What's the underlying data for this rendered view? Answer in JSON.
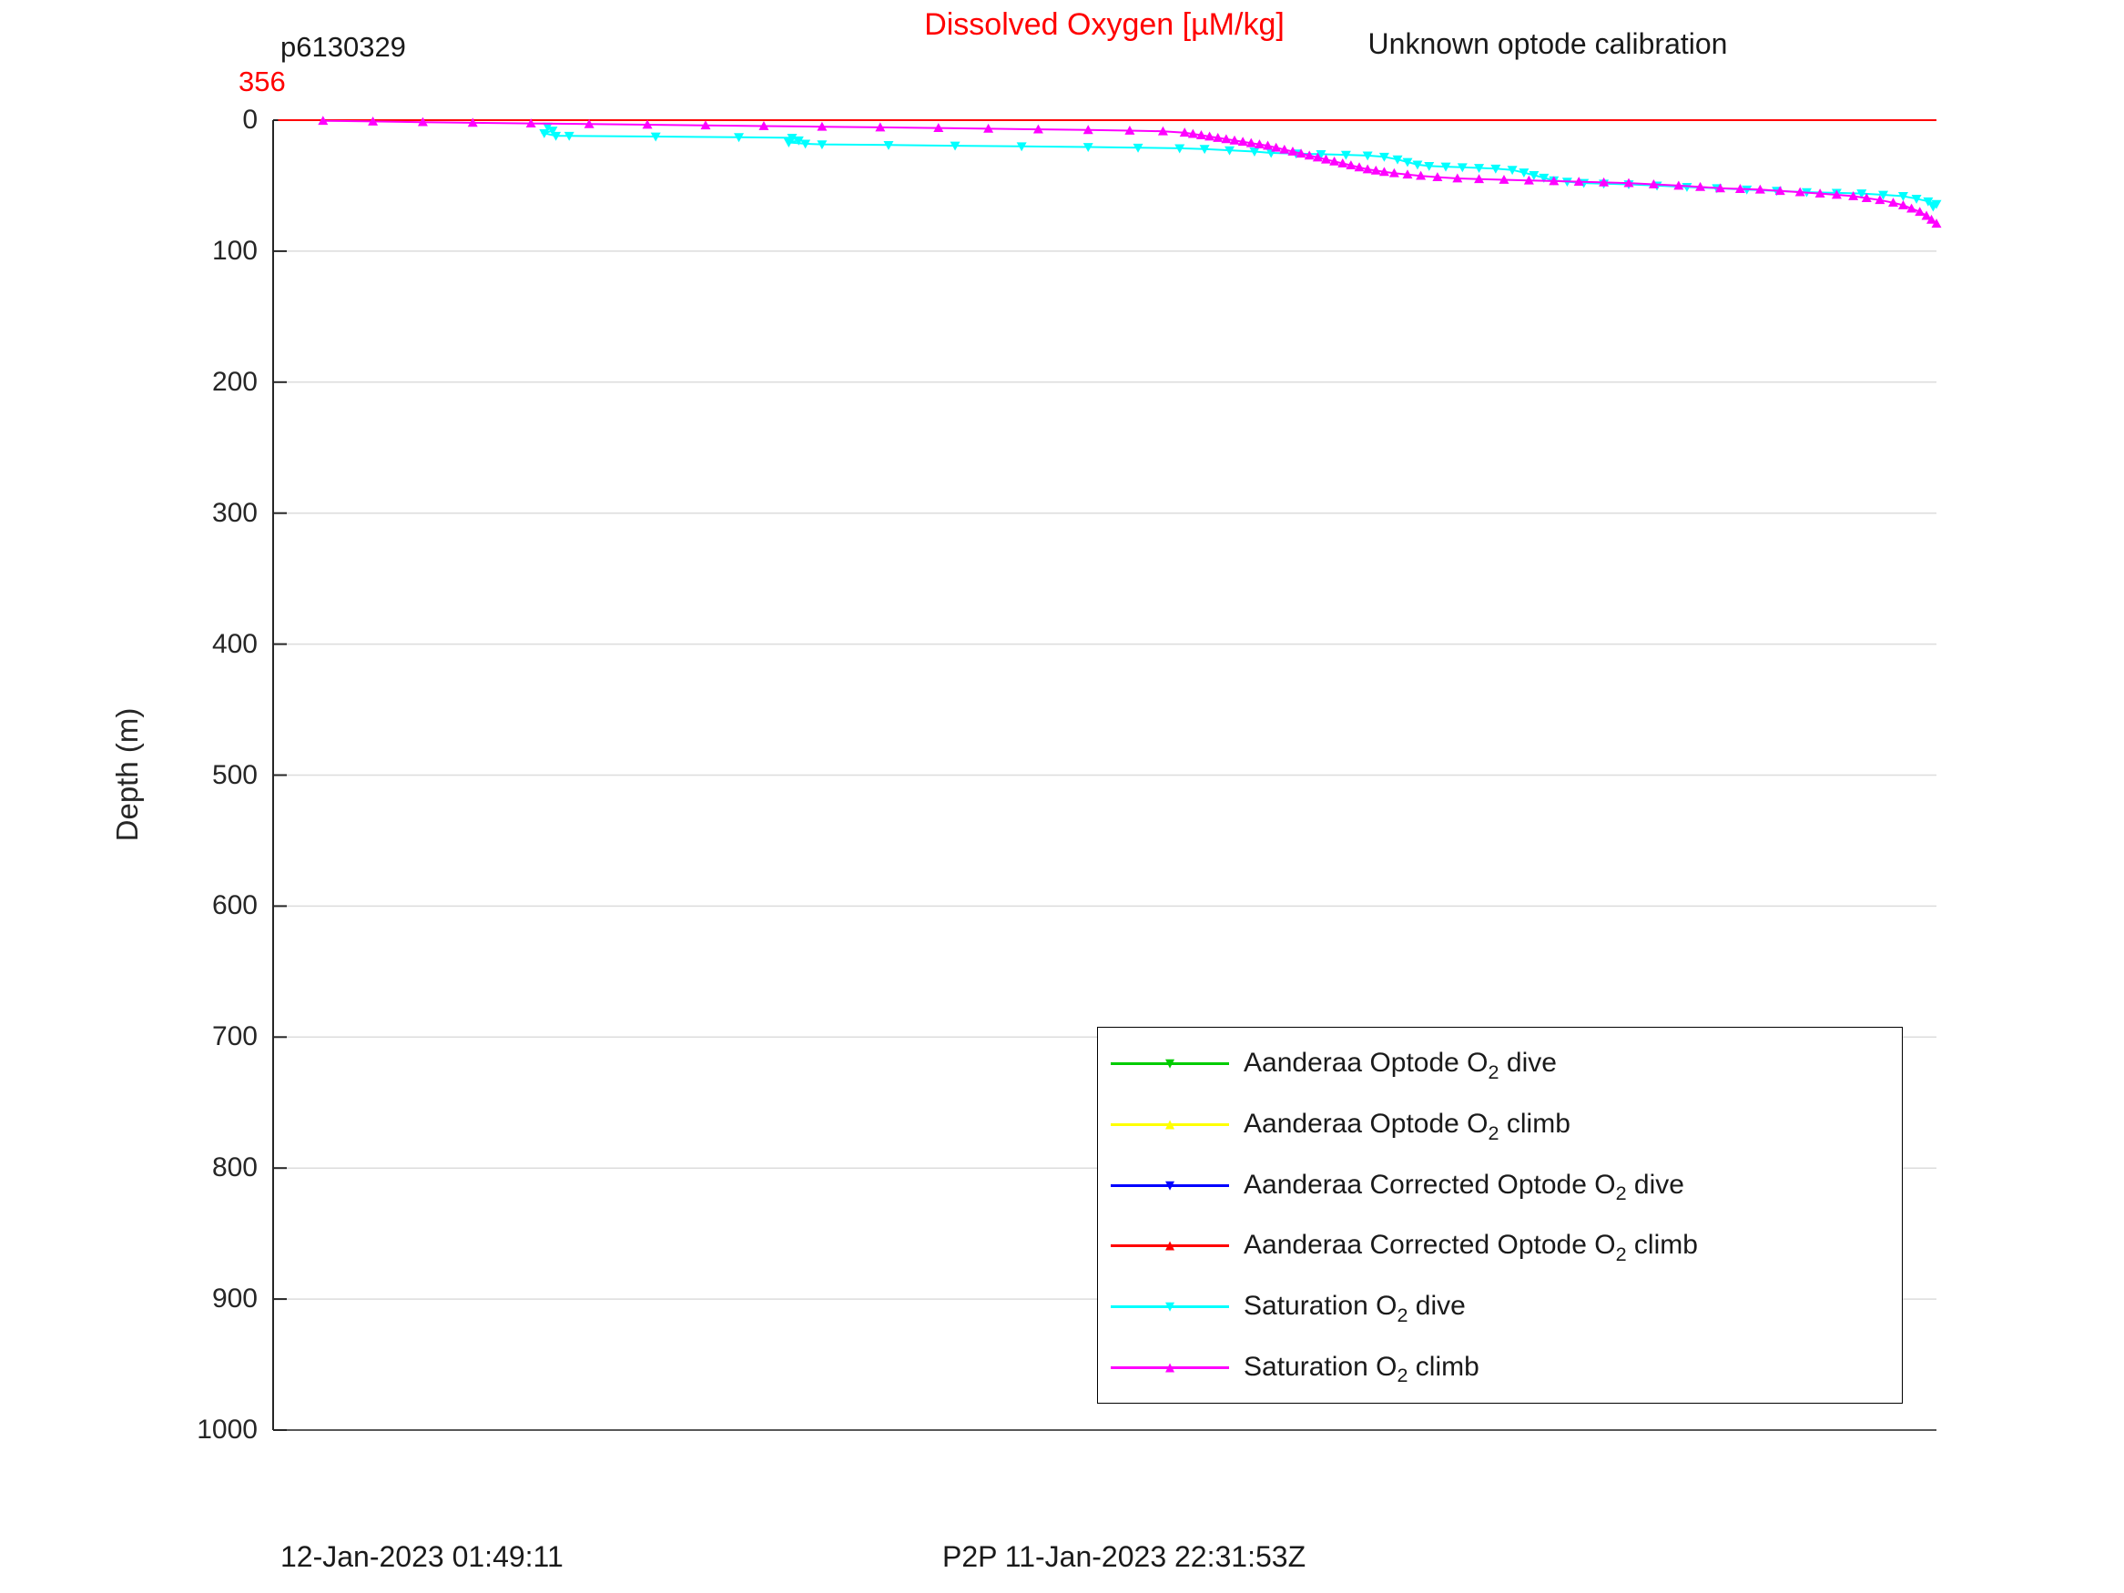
{
  "header": {
    "mission_id": "p6130329",
    "calibration_note": "Unknown optode calibration"
  },
  "footer": {
    "timestamp_left": "12-Jan-2023 01:49:11",
    "timestamp_right": "P2P 11-Jan-2023 22:31:53Z"
  },
  "legend": {
    "items": [
      {
        "pre": "Aanderaa Optode O",
        "sub": "2",
        "post": " dive"
      },
      {
        "pre": "Aanderaa Optode O",
        "sub": "2",
        "post": " climb"
      },
      {
        "pre": "Aanderaa Corrected Optode O",
        "sub": "2",
        "post": " dive"
      },
      {
        "pre": "Aanderaa Corrected Optode O",
        "sub": "2",
        "post": " climb"
      },
      {
        "pre": "Saturation O",
        "sub": "2",
        "post": " dive"
      },
      {
        "pre": "Saturation O",
        "sub": "2",
        "post": " climb"
      }
    ]
  },
  "chart_data": {
    "type": "line",
    "title": "Dissolved Oxygen [µM/kg]",
    "xlabel": "",
    "ylabel": "Depth (m)",
    "ylim": [
      0,
      1000
    ],
    "y_inverted": true,
    "yticks": [
      0,
      100,
      200,
      300,
      400,
      500,
      600,
      700,
      800,
      900,
      1000
    ],
    "grid": "horizontal",
    "legend_position": "lower-right",
    "x_left_annotation": "356",
    "x_axis_note": "x tick labels not visible in figure; series x values given as fraction of plot width (0 = left edge, 1 = right edge)",
    "series": [
      {
        "name": "Aanderaa Optode O2 dive",
        "color": "#00cc00",
        "marker": "down",
        "show_markers": false,
        "points": [
          [
            0.003,
            0
          ],
          [
            1,
            0
          ]
        ]
      },
      {
        "name": "Aanderaa Optode O2 climb",
        "color": "#ffff00",
        "marker": "up",
        "show_markers": false,
        "points": [
          [
            0.003,
            0
          ],
          [
            1,
            0
          ]
        ]
      },
      {
        "name": "Aanderaa Corrected Optode O2 dive",
        "color": "#0000ff",
        "marker": "down",
        "show_markers": false,
        "points": [
          [
            0.003,
            0
          ],
          [
            1,
            0
          ]
        ]
      },
      {
        "name": "Aanderaa Corrected Optode O2 climb",
        "color": "#ff0000",
        "marker": "up",
        "show_markers": false,
        "points": [
          [
            0.003,
            0
          ],
          [
            1,
            0
          ]
        ]
      },
      {
        "name": "Saturation O2 dive",
        "color": "#00ffff",
        "marker": "down",
        "show_markers": true,
        "points": [
          [
            0.165,
            5
          ],
          [
            0.168,
            8
          ],
          [
            0.163,
            10
          ],
          [
            0.17,
            12
          ],
          [
            0.178,
            12
          ],
          [
            0.23,
            12.5
          ],
          [
            0.28,
            13
          ],
          [
            0.312,
            13.5
          ],
          [
            0.316,
            15.5
          ],
          [
            0.31,
            17
          ],
          [
            0.32,
            18
          ],
          [
            0.33,
            18.5
          ],
          [
            0.37,
            19
          ],
          [
            0.41,
            19.5
          ],
          [
            0.45,
            20
          ],
          [
            0.49,
            20.5
          ],
          [
            0.52,
            21
          ],
          [
            0.545,
            21.5
          ],
          [
            0.56,
            22
          ],
          [
            0.575,
            23
          ],
          [
            0.59,
            24
          ],
          [
            0.6,
            25
          ],
          [
            0.615,
            25.5
          ],
          [
            0.63,
            26
          ],
          [
            0.645,
            26.5
          ],
          [
            0.658,
            27
          ],
          [
            0.668,
            28
          ],
          [
            0.676,
            30
          ],
          [
            0.682,
            32
          ],
          [
            0.688,
            34
          ],
          [
            0.695,
            35
          ],
          [
            0.705,
            35.5
          ],
          [
            0.715,
            36
          ],
          [
            0.725,
            36.5
          ],
          [
            0.735,
            37
          ],
          [
            0.745,
            38
          ],
          [
            0.752,
            40
          ],
          [
            0.758,
            42
          ],
          [
            0.764,
            44
          ],
          [
            0.77,
            46
          ],
          [
            0.778,
            47
          ],
          [
            0.788,
            48
          ],
          [
            0.8,
            48.5
          ],
          [
            0.815,
            49
          ],
          [
            0.832,
            50
          ],
          [
            0.85,
            51
          ],
          [
            0.868,
            52
          ],
          [
            0.886,
            53
          ],
          [
            0.904,
            54
          ],
          [
            0.922,
            55
          ],
          [
            0.94,
            55.5
          ],
          [
            0.955,
            56
          ],
          [
            0.968,
            57
          ],
          [
            0.98,
            58
          ],
          [
            0.988,
            60
          ],
          [
            0.995,
            62
          ],
          [
            1.0,
            64
          ],
          [
            0.998,
            66
          ]
        ]
      },
      {
        "name": "Saturation O2 climb",
        "color": "#ff00ff",
        "marker": "up",
        "show_markers": true,
        "points": [
          [
            0.03,
            0.5
          ],
          [
            0.06,
            1
          ],
          [
            0.09,
            1.5
          ],
          [
            0.12,
            2
          ],
          [
            0.155,
            2.5
          ],
          [
            0.19,
            3
          ],
          [
            0.225,
            3.5
          ],
          [
            0.26,
            4
          ],
          [
            0.295,
            4.5
          ],
          [
            0.33,
            5
          ],
          [
            0.365,
            5.5
          ],
          [
            0.4,
            6
          ],
          [
            0.43,
            6.5
          ],
          [
            0.46,
            7
          ],
          [
            0.49,
            7.5
          ],
          [
            0.515,
            8
          ],
          [
            0.535,
            8.5
          ],
          [
            0.548,
            9.5
          ],
          [
            0.553,
            10.5
          ],
          [
            0.558,
            11.5
          ],
          [
            0.563,
            12.5
          ],
          [
            0.568,
            13.5
          ],
          [
            0.573,
            14.5
          ],
          [
            0.578,
            15.5
          ],
          [
            0.583,
            16.5
          ],
          [
            0.588,
            17.5
          ],
          [
            0.593,
            18.5
          ],
          [
            0.598,
            19.5
          ],
          [
            0.603,
            21
          ],
          [
            0.608,
            22.5
          ],
          [
            0.613,
            24
          ],
          [
            0.618,
            25.5
          ],
          [
            0.623,
            27
          ],
          [
            0.628,
            28.5
          ],
          [
            0.633,
            30
          ],
          [
            0.638,
            31.5
          ],
          [
            0.643,
            33
          ],
          [
            0.648,
            34.5
          ],
          [
            0.653,
            36
          ],
          [
            0.658,
            37.5
          ],
          [
            0.663,
            38.5
          ],
          [
            0.668,
            39.5
          ],
          [
            0.674,
            40.5
          ],
          [
            0.682,
            41.5
          ],
          [
            0.69,
            42.5
          ],
          [
            0.7,
            43.5
          ],
          [
            0.712,
            44.5
          ],
          [
            0.725,
            45
          ],
          [
            0.74,
            45.5
          ],
          [
            0.755,
            46
          ],
          [
            0.77,
            46.5
          ],
          [
            0.785,
            47
          ],
          [
            0.8,
            47.5
          ],
          [
            0.815,
            48
          ],
          [
            0.83,
            49
          ],
          [
            0.845,
            50
          ],
          [
            0.858,
            51
          ],
          [
            0.87,
            52
          ],
          [
            0.882,
            52.5
          ],
          [
            0.894,
            53
          ],
          [
            0.906,
            54
          ],
          [
            0.918,
            55
          ],
          [
            0.93,
            56
          ],
          [
            0.94,
            57
          ],
          [
            0.95,
            58
          ],
          [
            0.958,
            59.5
          ],
          [
            0.966,
            61
          ],
          [
            0.974,
            63
          ],
          [
            0.98,
            65
          ],
          [
            0.985,
            67.5
          ],
          [
            0.99,
            70
          ],
          [
            0.994,
            73
          ],
          [
            0.997,
            76
          ],
          [
            1.0,
            79
          ]
        ]
      }
    ]
  }
}
